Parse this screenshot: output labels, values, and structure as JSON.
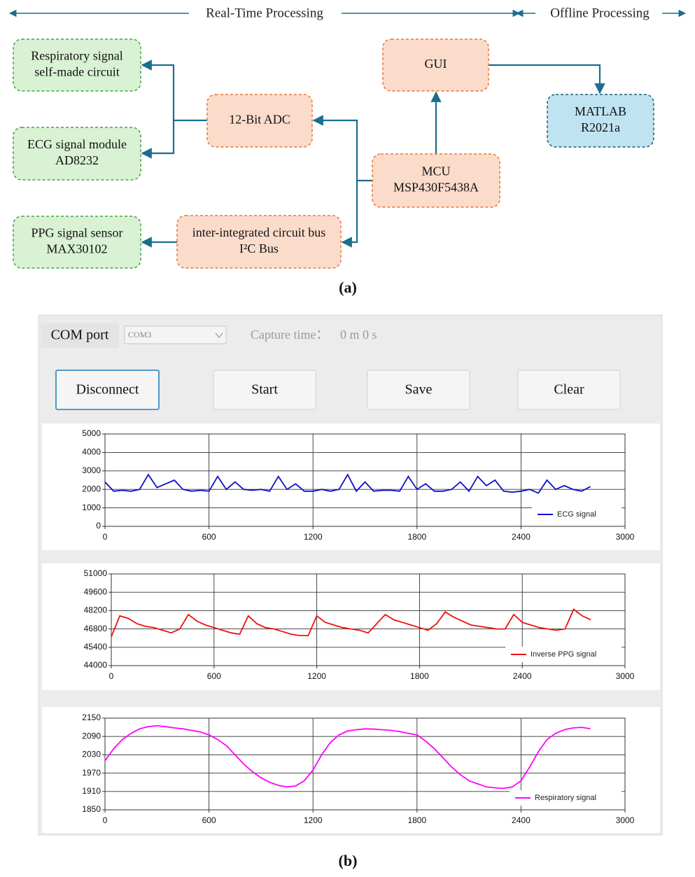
{
  "header": {
    "realtime": "Real-Time Processing",
    "offline": "Offline Processing"
  },
  "diagram": {
    "nodes": [
      {
        "lines": [
          "Respiratory signal",
          "self-made circuit"
        ]
      },
      {
        "lines": [
          "ECG signal module",
          "AD8232"
        ]
      },
      {
        "lines": [
          "PPG signal sensor",
          "MAX30102"
        ]
      },
      {
        "lines": [
          "12-Bit ADC"
        ]
      },
      {
        "lines": [
          "inter-integrated circuit bus",
          "I²C Bus"
        ]
      },
      {
        "lines": [
          "MCU",
          "MSP430F5438A"
        ]
      },
      {
        "lines": [
          "GUI"
        ]
      },
      {
        "lines": [
          "MATLAB",
          "R2021a"
        ]
      }
    ]
  },
  "panel_labels": [
    "(a)",
    "(b)"
  ],
  "gui": {
    "com_label": "COM port",
    "com_value": "COM3",
    "capture_label": "Capture time：",
    "capture_value": "0 m 0 s",
    "buttons": [
      "Disconnect",
      "Start",
      "Save",
      "Clear"
    ]
  },
  "chart_data": [
    {
      "type": "line",
      "x": [
        0,
        50,
        100,
        150,
        200,
        250,
        300,
        350,
        400,
        450,
        500,
        550,
        600,
        650,
        700,
        750,
        800,
        850,
        900,
        950,
        1000,
        1050,
        1100,
        1150,
        1200,
        1250,
        1300,
        1350,
        1400,
        1450,
        1500,
        1550,
        1600,
        1650,
        1700,
        1750,
        1800,
        1850,
        1900,
        1950,
        2000,
        2050,
        2100,
        2150,
        2200,
        2250,
        2300,
        2350,
        2400,
        2450,
        2500,
        2550,
        2600,
        2650,
        2700,
        2750,
        2800
      ],
      "series": [
        {
          "name": "ECG signal",
          "color": "#1010c8",
          "values": [
            2400,
            1900,
            1950,
            1900,
            2000,
            2800,
            2100,
            2300,
            2500,
            2000,
            1900,
            1950,
            1900,
            2700,
            2000,
            2400,
            2000,
            1950,
            2000,
            1900,
            2700,
            2000,
            2300,
            1900,
            1900,
            2000,
            1900,
            2000,
            2800,
            1900,
            2400,
            1900,
            1950,
            1950,
            1900,
            2700,
            2000,
            2300,
            1900,
            1900,
            2000,
            2400,
            1900,
            2700,
            2200,
            2500,
            1900,
            1850,
            1900,
            2000,
            1800,
            2500,
            2000,
            2200,
            2000,
            1900,
            2150
          ]
        }
      ],
      "xlim": [
        0,
        3000
      ],
      "xticks": [
        0,
        600,
        1200,
        1800,
        2400,
        3000
      ],
      "ylim": [
        0,
        5000
      ],
      "yticks": [
        0,
        1000,
        2000,
        3000,
        4000,
        5000
      ],
      "grid": true,
      "legend": "lower right"
    },
    {
      "type": "line",
      "x": [
        0,
        50,
        100,
        150,
        200,
        250,
        300,
        350,
        400,
        450,
        500,
        550,
        600,
        650,
        700,
        750,
        800,
        850,
        900,
        950,
        1000,
        1050,
        1100,
        1150,
        1200,
        1250,
        1300,
        1350,
        1400,
        1450,
        1500,
        1550,
        1600,
        1650,
        1700,
        1750,
        1800,
        1850,
        1900,
        1950,
        2000,
        2050,
        2100,
        2150,
        2200,
        2250,
        2300,
        2350,
        2400,
        2450,
        2500,
        2550,
        2600,
        2650,
        2700,
        2750,
        2800
      ],
      "series": [
        {
          "name": "Inverse PPG signal",
          "color": "#ee1111",
          "values": [
            46200,
            47800,
            47600,
            47200,
            47000,
            46900,
            46700,
            46500,
            46800,
            47900,
            47400,
            47100,
            46900,
            46700,
            46500,
            46400,
            47800,
            47200,
            46900,
            46800,
            46600,
            46400,
            46300,
            46300,
            47800,
            47300,
            47100,
            46900,
            46800,
            46700,
            46500,
            47200,
            47900,
            47500,
            47300,
            47100,
            46900,
            46700,
            47200,
            48100,
            47700,
            47400,
            47100,
            47000,
            46900,
            46800,
            46800,
            47900,
            47300,
            47100,
            46900,
            46800,
            46700,
            46800,
            48300,
            47800,
            47500
          ]
        }
      ],
      "xlim": [
        0,
        3000
      ],
      "xticks": [
        0,
        600,
        1200,
        1800,
        2400,
        3000
      ],
      "ylim": [
        44000,
        51000
      ],
      "yticks": [
        44000,
        45400,
        46800,
        48200,
        49600,
        51000
      ],
      "grid": true,
      "legend": "lower right"
    },
    {
      "type": "line",
      "x": [
        0,
        50,
        100,
        150,
        200,
        250,
        300,
        350,
        400,
        450,
        500,
        550,
        600,
        650,
        700,
        750,
        800,
        850,
        900,
        950,
        1000,
        1050,
        1100,
        1150,
        1200,
        1250,
        1300,
        1350,
        1400,
        1450,
        1500,
        1550,
        1600,
        1650,
        1700,
        1750,
        1800,
        1850,
        1900,
        1950,
        2000,
        2050,
        2100,
        2150,
        2200,
        2250,
        2300,
        2350,
        2400,
        2450,
        2500,
        2550,
        2600,
        2650,
        2700,
        2750,
        2800
      ],
      "series": [
        {
          "name": "Respiratory signal",
          "color": "#ff00ff",
          "values": [
            2010,
            2050,
            2080,
            2100,
            2115,
            2122,
            2125,
            2122,
            2118,
            2115,
            2110,
            2105,
            2095,
            2080,
            2060,
            2030,
            2000,
            1975,
            1955,
            1940,
            1930,
            1925,
            1928,
            1945,
            1980,
            2030,
            2070,
            2095,
            2108,
            2112,
            2115,
            2114,
            2112,
            2110,
            2106,
            2100,
            2095,
            2075,
            2050,
            2020,
            1990,
            1965,
            1945,
            1935,
            1925,
            1922,
            1920,
            1925,
            1945,
            1990,
            2040,
            2080,
            2100,
            2112,
            2118,
            2120,
            2115
          ]
        }
      ],
      "xlim": [
        0,
        3000
      ],
      "xticks": [
        0,
        600,
        1200,
        1800,
        2400,
        3000
      ],
      "ylim": [
        1850,
        2150
      ],
      "yticks": [
        1850,
        1910,
        1970,
        2030,
        2090,
        2150
      ],
      "grid": true,
      "legend": "lower right"
    }
  ]
}
